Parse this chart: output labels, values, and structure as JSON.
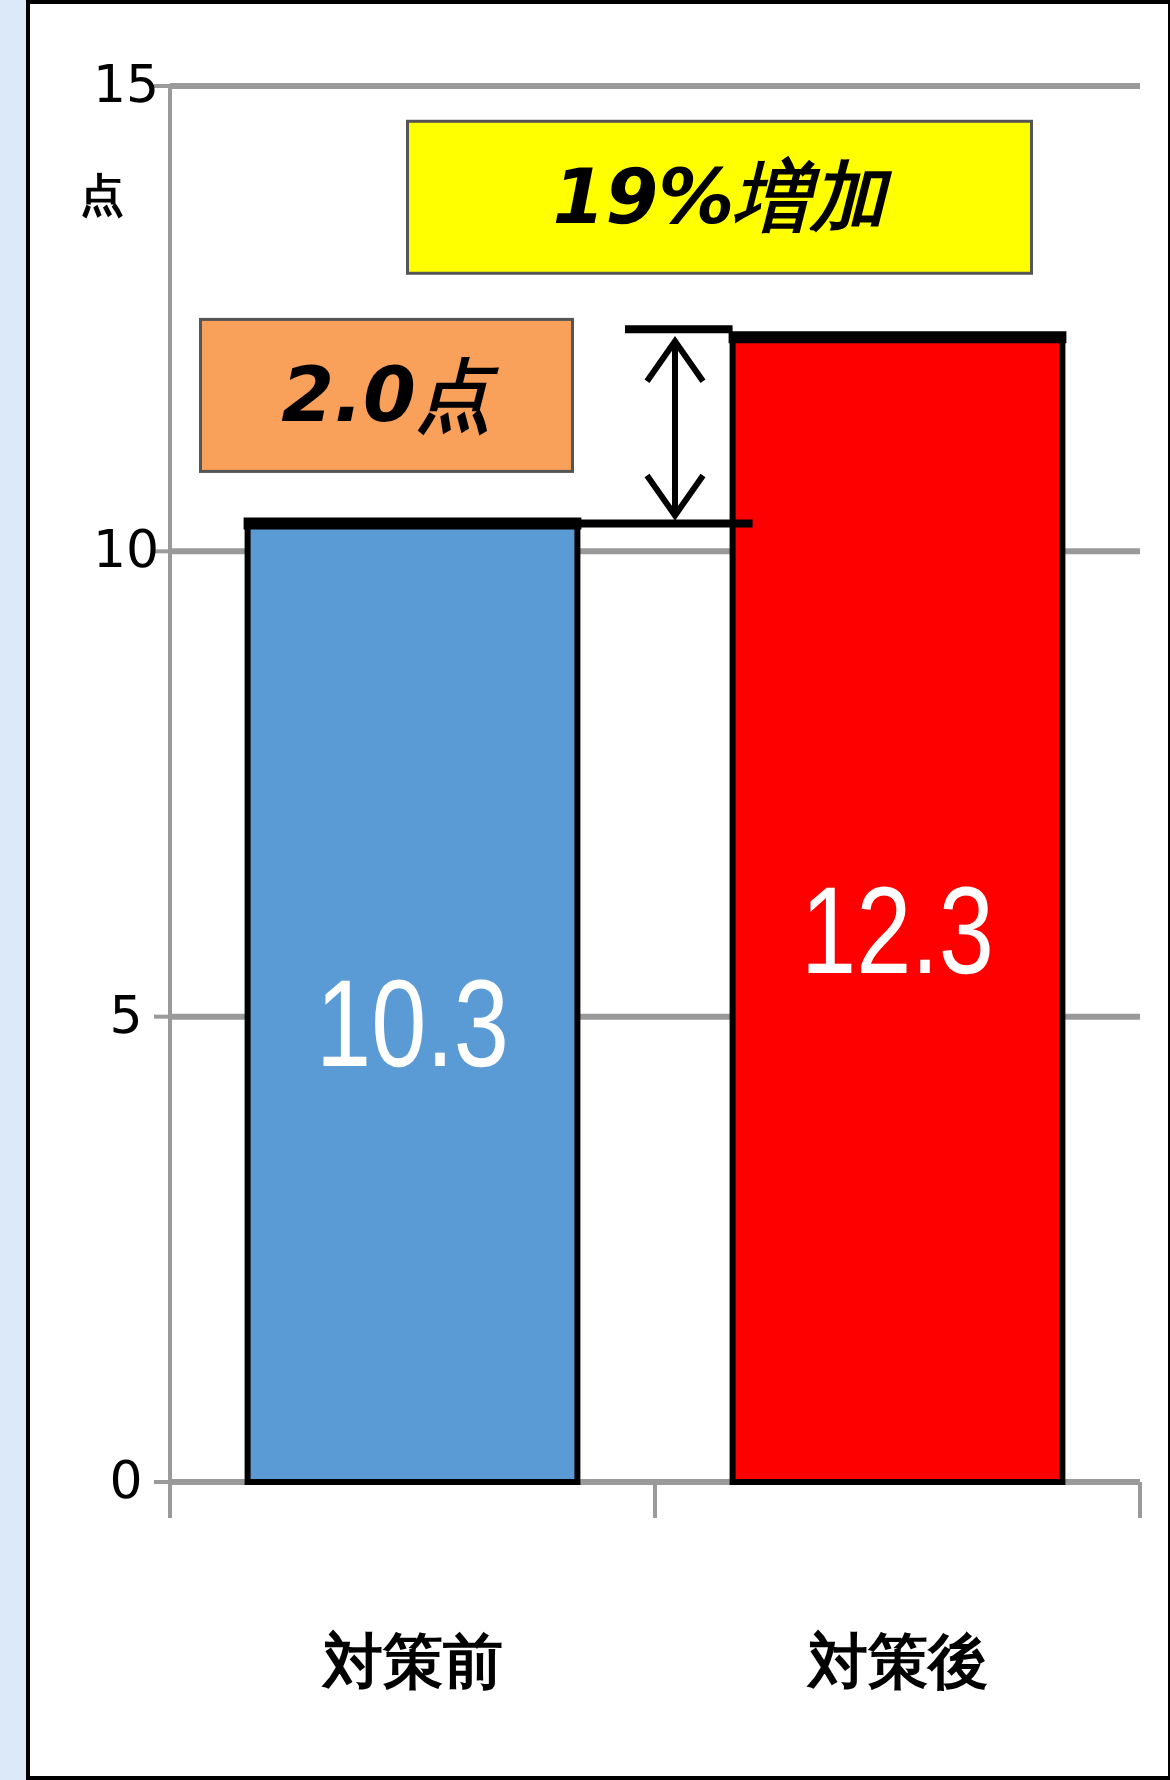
{
  "chart_data": {
    "type": "bar",
    "ylabel": "点",
    "categories": [
      "対策前",
      "対策後"
    ],
    "values": [
      10.3,
      12.3
    ],
    "colors": [
      "#5b9bd5",
      "#ff0000"
    ],
    "ylim": [
      0,
      15
    ],
    "yticks": [
      0,
      5,
      10,
      15
    ],
    "grid": "y",
    "data_labels": true,
    "annotations": [
      {
        "text": "19%増加",
        "x": "対策後",
        "y": 12.3
      },
      {
        "text": "2.0点",
        "x": "対策前",
        "y": 10.3
      }
    ]
  }
}
